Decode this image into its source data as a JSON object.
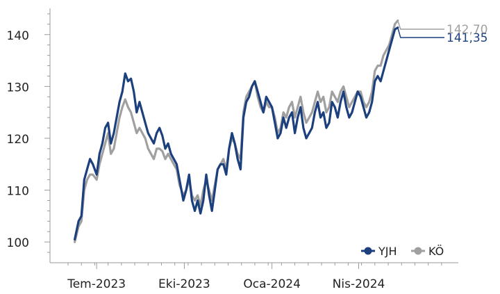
{
  "chart_data": {
    "type": "line",
    "title": "",
    "xlabel": "",
    "ylabel": "",
    "ylim": [
      96,
      146
    ],
    "yticks": [
      100,
      110,
      120,
      130,
      140
    ],
    "x_range": [
      "2023-06-01",
      "2024-06-30"
    ],
    "xticks": [
      {
        "date": "2023-07-01",
        "label": "Tem-2023"
      },
      {
        "date": "2023-10-01",
        "label": "Eki-2023"
      },
      {
        "date": "2024-01-01",
        "label": "Oca-2024"
      },
      {
        "date": "2024-04-01",
        "label": "Nis-2024"
      }
    ],
    "legend": {
      "position": "bottom-right"
    },
    "series": [
      {
        "name": "YJH",
        "color": "#1c3f7d",
        "end_label": "141,35",
        "points": [
          [
            "2023-06-08",
            100.5
          ],
          [
            "2023-06-12",
            104
          ],
          [
            "2023-06-15",
            105
          ],
          [
            "2023-06-18",
            112
          ],
          [
            "2023-06-21",
            114
          ],
          [
            "2023-06-24",
            116
          ],
          [
            "2023-06-27",
            115
          ],
          [
            "2023-07-01",
            113
          ],
          [
            "2023-07-04",
            117
          ],
          [
            "2023-07-07",
            119
          ],
          [
            "2023-07-10",
            122
          ],
          [
            "2023-07-13",
            123
          ],
          [
            "2023-07-16",
            119
          ],
          [
            "2023-07-19",
            121
          ],
          [
            "2023-07-22",
            124
          ],
          [
            "2023-07-25",
            127
          ],
          [
            "2023-07-28",
            129
          ],
          [
            "2023-07-31",
            132.5
          ],
          [
            "2023-08-03",
            131
          ],
          [
            "2023-08-06",
            131.5
          ],
          [
            "2023-08-09",
            129
          ],
          [
            "2023-08-12",
            125
          ],
          [
            "2023-08-15",
            127
          ],
          [
            "2023-08-18",
            125
          ],
          [
            "2023-08-21",
            123
          ],
          [
            "2023-08-24",
            121
          ],
          [
            "2023-08-27",
            120
          ],
          [
            "2023-08-30",
            119
          ],
          [
            "2023-09-02",
            121
          ],
          [
            "2023-09-05",
            122
          ],
          [
            "2023-09-08",
            120.5
          ],
          [
            "2023-09-11",
            118
          ],
          [
            "2023-09-14",
            119
          ],
          [
            "2023-09-17",
            117
          ],
          [
            "2023-09-20",
            116
          ],
          [
            "2023-09-23",
            115
          ],
          [
            "2023-09-26",
            112
          ],
          [
            "2023-09-30",
            108
          ],
          [
            "2023-10-03",
            110
          ],
          [
            "2023-10-06",
            113
          ],
          [
            "2023-10-09",
            108
          ],
          [
            "2023-10-12",
            106
          ],
          [
            "2023-10-15",
            108
          ],
          [
            "2023-10-18",
            105.5
          ],
          [
            "2023-10-21",
            108
          ],
          [
            "2023-10-24",
            113
          ],
          [
            "2023-10-27",
            109
          ],
          [
            "2023-10-30",
            106
          ],
          [
            "2023-11-02",
            110
          ],
          [
            "2023-11-05",
            114
          ],
          [
            "2023-11-08",
            115
          ],
          [
            "2023-11-11",
            115
          ],
          [
            "2023-11-14",
            113
          ],
          [
            "2023-11-17",
            118
          ],
          [
            "2023-11-20",
            121
          ],
          [
            "2023-11-23",
            119
          ],
          [
            "2023-11-26",
            116
          ],
          [
            "2023-11-29",
            114
          ],
          [
            "2023-12-02",
            124
          ],
          [
            "2023-12-05",
            127
          ],
          [
            "2023-12-08",
            128
          ],
          [
            "2023-12-11",
            130
          ],
          [
            "2023-12-14",
            131
          ],
          [
            "2023-12-17",
            129
          ],
          [
            "2023-12-20",
            127
          ],
          [
            "2023-12-23",
            125
          ],
          [
            "2023-12-26",
            128
          ],
          [
            "2023-12-29",
            127
          ],
          [
            "2024-01-01",
            126
          ],
          [
            "2024-01-04",
            123
          ],
          [
            "2024-01-07",
            120
          ],
          [
            "2024-01-10",
            121
          ],
          [
            "2024-01-13",
            124
          ],
          [
            "2024-01-16",
            122
          ],
          [
            "2024-01-19",
            124
          ],
          [
            "2024-01-22",
            125
          ],
          [
            "2024-01-25",
            121
          ],
          [
            "2024-01-28",
            124
          ],
          [
            "2024-01-31",
            126
          ],
          [
            "2024-02-03",
            122
          ],
          [
            "2024-02-06",
            120
          ],
          [
            "2024-02-09",
            121
          ],
          [
            "2024-02-12",
            122
          ],
          [
            "2024-02-15",
            125
          ],
          [
            "2024-02-18",
            127
          ],
          [
            "2024-02-21",
            124
          ],
          [
            "2024-02-24",
            125
          ],
          [
            "2024-02-27",
            122
          ],
          [
            "2024-03-01",
            123
          ],
          [
            "2024-03-04",
            127
          ],
          [
            "2024-03-07",
            126
          ],
          [
            "2024-03-10",
            124
          ],
          [
            "2024-03-13",
            127
          ],
          [
            "2024-03-16",
            129
          ],
          [
            "2024-03-19",
            126
          ],
          [
            "2024-03-22",
            124
          ],
          [
            "2024-03-25",
            125
          ],
          [
            "2024-03-28",
            127
          ],
          [
            "2024-03-31",
            129
          ],
          [
            "2024-04-03",
            128
          ],
          [
            "2024-04-06",
            126
          ],
          [
            "2024-04-09",
            124
          ],
          [
            "2024-04-12",
            125
          ],
          [
            "2024-04-15",
            127
          ],
          [
            "2024-04-18",
            131
          ],
          [
            "2024-04-21",
            132
          ],
          [
            "2024-04-24",
            131
          ],
          [
            "2024-04-27",
            133
          ],
          [
            "2024-04-30",
            135
          ],
          [
            "2024-05-03",
            137
          ],
          [
            "2024-05-06",
            139
          ],
          [
            "2024-05-09",
            141
          ],
          [
            "2024-05-12",
            141.35
          ]
        ]
      },
      {
        "name": "KÖ",
        "color": "#a0a0a0",
        "end_label": "142,70",
        "points": [
          [
            "2023-06-08",
            100
          ],
          [
            "2023-06-12",
            103
          ],
          [
            "2023-06-15",
            104
          ],
          [
            "2023-06-18",
            110
          ],
          [
            "2023-06-21",
            112
          ],
          [
            "2023-06-24",
            113
          ],
          [
            "2023-06-27",
            113
          ],
          [
            "2023-07-01",
            112
          ],
          [
            "2023-07-04",
            115
          ],
          [
            "2023-07-07",
            117
          ],
          [
            "2023-07-10",
            119
          ],
          [
            "2023-07-13",
            121
          ],
          [
            "2023-07-16",
            117
          ],
          [
            "2023-07-19",
            118
          ],
          [
            "2023-07-22",
            121
          ],
          [
            "2023-07-25",
            124
          ],
          [
            "2023-07-28",
            126
          ],
          [
            "2023-07-31",
            127.5
          ],
          [
            "2023-08-03",
            126
          ],
          [
            "2023-08-06",
            125
          ],
          [
            "2023-08-09",
            123
          ],
          [
            "2023-08-12",
            121
          ],
          [
            "2023-08-15",
            122
          ],
          [
            "2023-08-18",
            121
          ],
          [
            "2023-08-21",
            120
          ],
          [
            "2023-08-24",
            118
          ],
          [
            "2023-08-27",
            117
          ],
          [
            "2023-08-30",
            116
          ],
          [
            "2023-09-02",
            118
          ],
          [
            "2023-09-05",
            118
          ],
          [
            "2023-09-08",
            117.5
          ],
          [
            "2023-09-11",
            116
          ],
          [
            "2023-09-14",
            117
          ],
          [
            "2023-09-17",
            116
          ],
          [
            "2023-09-20",
            115
          ],
          [
            "2023-09-23",
            114
          ],
          [
            "2023-09-26",
            111
          ],
          [
            "2023-09-30",
            109
          ],
          [
            "2023-10-03",
            110
          ],
          [
            "2023-10-06",
            112
          ],
          [
            "2023-10-09",
            109
          ],
          [
            "2023-10-12",
            108
          ],
          [
            "2023-10-15",
            109
          ],
          [
            "2023-10-18",
            107
          ],
          [
            "2023-10-21",
            110
          ],
          [
            "2023-10-24",
            112
          ],
          [
            "2023-10-27",
            110
          ],
          [
            "2023-10-30",
            108
          ],
          [
            "2023-11-02",
            111
          ],
          [
            "2023-11-05",
            114
          ],
          [
            "2023-11-08",
            115
          ],
          [
            "2023-11-11",
            116
          ],
          [
            "2023-11-14",
            114
          ],
          [
            "2023-11-17",
            118
          ],
          [
            "2023-11-20",
            120
          ],
          [
            "2023-11-23",
            119
          ],
          [
            "2023-11-26",
            117
          ],
          [
            "2023-11-29",
            116
          ],
          [
            "2023-12-02",
            125
          ],
          [
            "2023-12-05",
            128
          ],
          [
            "2023-12-08",
            129
          ],
          [
            "2023-12-11",
            130
          ],
          [
            "2023-12-14",
            131
          ],
          [
            "2023-12-17",
            128
          ],
          [
            "2023-12-20",
            126
          ],
          [
            "2023-12-23",
            125
          ],
          [
            "2023-12-26",
            127
          ],
          [
            "2023-12-29",
            126
          ],
          [
            "2024-01-01",
            126
          ],
          [
            "2024-01-04",
            124
          ],
          [
            "2024-01-07",
            121
          ],
          [
            "2024-01-10",
            122
          ],
          [
            "2024-01-13",
            125
          ],
          [
            "2024-01-16",
            124
          ],
          [
            "2024-01-19",
            126
          ],
          [
            "2024-01-22",
            127
          ],
          [
            "2024-01-25",
            124
          ],
          [
            "2024-01-28",
            126
          ],
          [
            "2024-01-31",
            128
          ],
          [
            "2024-02-03",
            125
          ],
          [
            "2024-02-06",
            123
          ],
          [
            "2024-02-09",
            124
          ],
          [
            "2024-02-12",
            125
          ],
          [
            "2024-02-15",
            127
          ],
          [
            "2024-02-18",
            129
          ],
          [
            "2024-02-21",
            127
          ],
          [
            "2024-02-24",
            128
          ],
          [
            "2024-02-27",
            125
          ],
          [
            "2024-03-01",
            126
          ],
          [
            "2024-03-04",
            129
          ],
          [
            "2024-03-07",
            128
          ],
          [
            "2024-03-10",
            127
          ],
          [
            "2024-03-13",
            129
          ],
          [
            "2024-03-16",
            130
          ],
          [
            "2024-03-19",
            128
          ],
          [
            "2024-03-22",
            126
          ],
          [
            "2024-03-25",
            127
          ],
          [
            "2024-03-28",
            128
          ],
          [
            "2024-03-31",
            129
          ],
          [
            "2024-04-03",
            129
          ],
          [
            "2024-04-06",
            127
          ],
          [
            "2024-04-09",
            126
          ],
          [
            "2024-04-12",
            127
          ],
          [
            "2024-04-15",
            129
          ],
          [
            "2024-04-18",
            133
          ],
          [
            "2024-04-21",
            134
          ],
          [
            "2024-04-24",
            134
          ],
          [
            "2024-04-27",
            136
          ],
          [
            "2024-04-30",
            137
          ],
          [
            "2024-05-03",
            138
          ],
          [
            "2024-05-06",
            140
          ],
          [
            "2024-05-09",
            142
          ],
          [
            "2024-05-12",
            142.7
          ]
        ]
      }
    ]
  }
}
